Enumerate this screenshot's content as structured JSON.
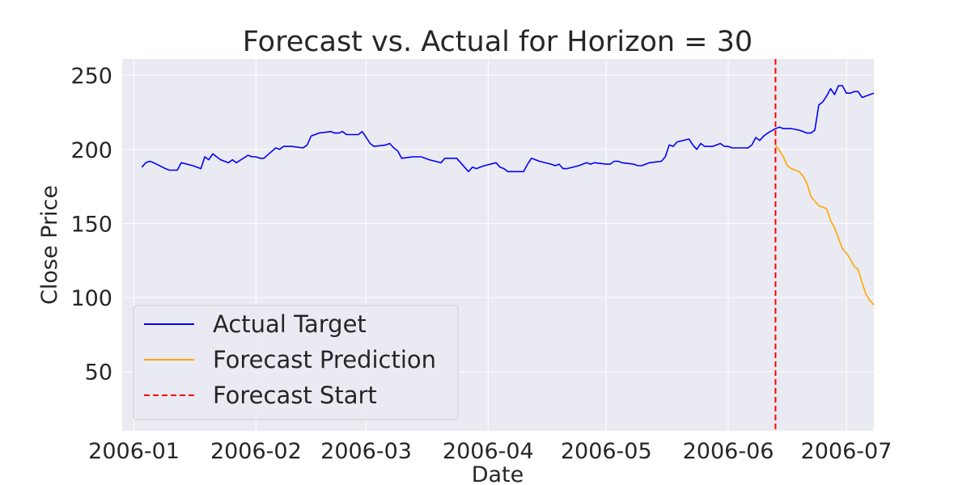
{
  "chart_data": {
    "type": "line",
    "title": "Forecast vs. Actual for Horizon = 30",
    "xlabel": "Date",
    "ylabel": "Close Price",
    "x_range": [
      "2005-12-29",
      "2006-07-08"
    ],
    "ylim": [
      10,
      261
    ],
    "x_ticks": [
      "2006-01-01",
      "2006-02-01",
      "2006-03-01",
      "2006-04-01",
      "2006-05-01",
      "2006-06-01",
      "2006-07-01"
    ],
    "x_tick_labels": [
      "2006-01",
      "2006-02",
      "2006-03",
      "2006-04",
      "2006-05",
      "2006-06",
      "2006-07"
    ],
    "y_ticks": [
      50,
      100,
      150,
      200,
      250
    ],
    "y_tick_labels": [
      "50",
      "100",
      "150",
      "200",
      "250"
    ],
    "grid": true,
    "legend_position": "lower-left",
    "background": "#eaeaf2",
    "series": [
      {
        "name": "Actual Target",
        "color": "#0000ff",
        "style": "solid",
        "points": [
          [
            "2006-01-03",
            188
          ],
          [
            "2006-01-04",
            191
          ],
          [
            "2006-01-05",
            192
          ],
          [
            "2006-01-06",
            191
          ],
          [
            "2006-01-09",
            187
          ],
          [
            "2006-01-10",
            186
          ],
          [
            "2006-01-11",
            186
          ],
          [
            "2006-01-12",
            186
          ],
          [
            "2006-01-13",
            191
          ],
          [
            "2006-01-16",
            189
          ],
          [
            "2006-01-17",
            188
          ],
          [
            "2006-01-18",
            187
          ],
          [
            "2006-01-19",
            195
          ],
          [
            "2006-01-20",
            193
          ],
          [
            "2006-01-21",
            197
          ],
          [
            "2006-01-23",
            193
          ],
          [
            "2006-01-24",
            192
          ],
          [
            "2006-01-25",
            191
          ],
          [
            "2006-01-26",
            193
          ],
          [
            "2006-01-27",
            191
          ],
          [
            "2006-01-30",
            196
          ],
          [
            "2006-01-31",
            195
          ],
          [
            "2006-02-01",
            195
          ],
          [
            "2006-02-02",
            194
          ],
          [
            "2006-02-03",
            194
          ],
          [
            "2006-02-06",
            201
          ],
          [
            "2006-02-07",
            200
          ],
          [
            "2006-02-08",
            202
          ],
          [
            "2006-02-09",
            202
          ],
          [
            "2006-02-10",
            202
          ],
          [
            "2006-02-13",
            201
          ],
          [
            "2006-02-14",
            203
          ],
          [
            "2006-02-15",
            209
          ],
          [
            "2006-02-16",
            210
          ],
          [
            "2006-02-17",
            211
          ],
          [
            "2006-02-20",
            212
          ],
          [
            "2006-02-21",
            211
          ],
          [
            "2006-02-22",
            211
          ],
          [
            "2006-02-23",
            212
          ],
          [
            "2006-02-24",
            210
          ],
          [
            "2006-02-27",
            210
          ],
          [
            "2006-02-28",
            212
          ],
          [
            "2006-03-01",
            208
          ],
          [
            "2006-03-02",
            204
          ],
          [
            "2006-03-03",
            202
          ],
          [
            "2006-03-06",
            203
          ],
          [
            "2006-03-07",
            204
          ],
          [
            "2006-03-08",
            201
          ],
          [
            "2006-03-09",
            199
          ],
          [
            "2006-03-10",
            194
          ],
          [
            "2006-03-13",
            195
          ],
          [
            "2006-03-14",
            195
          ],
          [
            "2006-03-15",
            195
          ],
          [
            "2006-03-16",
            194
          ],
          [
            "2006-03-17",
            193
          ],
          [
            "2006-03-20",
            191
          ],
          [
            "2006-03-21",
            194
          ],
          [
            "2006-03-22",
            194
          ],
          [
            "2006-03-23",
            194
          ],
          [
            "2006-03-24",
            194
          ],
          [
            "2006-03-27",
            185
          ],
          [
            "2006-03-28",
            188
          ],
          [
            "2006-03-29",
            187
          ],
          [
            "2006-03-30",
            188
          ],
          [
            "2006-03-31",
            189
          ],
          [
            "2006-04-03",
            191
          ],
          [
            "2006-04-04",
            188
          ],
          [
            "2006-04-05",
            187
          ],
          [
            "2006-04-06",
            185
          ],
          [
            "2006-04-07",
            185
          ],
          [
            "2006-04-10",
            185
          ],
          [
            "2006-04-11",
            190
          ],
          [
            "2006-04-12",
            194
          ],
          [
            "2006-04-13",
            193
          ],
          [
            "2006-04-14",
            192
          ],
          [
            "2006-04-17",
            190
          ],
          [
            "2006-04-18",
            189
          ],
          [
            "2006-04-19",
            190
          ],
          [
            "2006-04-20",
            187
          ],
          [
            "2006-04-21",
            187
          ],
          [
            "2006-04-24",
            189
          ],
          [
            "2006-04-25",
            190
          ],
          [
            "2006-04-26",
            191
          ],
          [
            "2006-04-27",
            190
          ],
          [
            "2006-04-28",
            191
          ],
          [
            "2006-05-01",
            190
          ],
          [
            "2006-05-02",
            190
          ],
          [
            "2006-05-03",
            192
          ],
          [
            "2006-05-04",
            192
          ],
          [
            "2006-05-05",
            191
          ],
          [
            "2006-05-08",
            190
          ],
          [
            "2006-05-09",
            189
          ],
          [
            "2006-05-10",
            189
          ],
          [
            "2006-05-11",
            190
          ],
          [
            "2006-05-12",
            191
          ],
          [
            "2006-05-15",
            192
          ],
          [
            "2006-05-16",
            195
          ],
          [
            "2006-05-17",
            203
          ],
          [
            "2006-05-18",
            202
          ],
          [
            "2006-05-19",
            205
          ],
          [
            "2006-05-22",
            207
          ],
          [
            "2006-05-23",
            203
          ],
          [
            "2006-05-24",
            200
          ],
          [
            "2006-05-25",
            204
          ],
          [
            "2006-05-26",
            202
          ],
          [
            "2006-05-27",
            202
          ],
          [
            "2006-05-28",
            202
          ],
          [
            "2006-05-30",
            204
          ],
          [
            "2006-05-31",
            202
          ],
          [
            "2006-06-01",
            202
          ],
          [
            "2006-06-02",
            201
          ],
          [
            "2006-06-05",
            201
          ],
          [
            "2006-06-06",
            201
          ],
          [
            "2006-06-07",
            203
          ],
          [
            "2006-06-08",
            208
          ],
          [
            "2006-06-09",
            206
          ],
          [
            "2006-06-10",
            209
          ],
          [
            "2006-06-11",
            211
          ],
          [
            "2006-06-13",
            214
          ],
          [
            "2006-06-14",
            215
          ],
          [
            "2006-06-15",
            214
          ],
          [
            "2006-06-16",
            214
          ],
          [
            "2006-06-17",
            214
          ],
          [
            "2006-06-19",
            213
          ],
          [
            "2006-06-20",
            212
          ],
          [
            "2006-06-21",
            211
          ],
          [
            "2006-06-22",
            211
          ],
          [
            "2006-06-23",
            213
          ],
          [
            "2006-06-24",
            230
          ],
          [
            "2006-06-25",
            232
          ],
          [
            "2006-06-26",
            236
          ],
          [
            "2006-06-27",
            241
          ],
          [
            "2006-06-28",
            237
          ],
          [
            "2006-06-29",
            243
          ],
          [
            "2006-06-30",
            243
          ],
          [
            "2006-07-01",
            238
          ],
          [
            "2006-07-02",
            238
          ],
          [
            "2006-07-03",
            239
          ],
          [
            "2006-07-04",
            239
          ],
          [
            "2006-07-05",
            235
          ],
          [
            "2006-07-06",
            236
          ],
          [
            "2006-07-07",
            237
          ],
          [
            "2006-07-08",
            238
          ]
        ]
      },
      {
        "name": "Forecast Prediction",
        "color": "#ffa500",
        "style": "solid",
        "points": [
          [
            "2006-06-13",
            203
          ],
          [
            "2006-06-14",
            199
          ],
          [
            "2006-06-15",
            195
          ],
          [
            "2006-06-16",
            189
          ],
          [
            "2006-06-17",
            187
          ],
          [
            "2006-06-19",
            185
          ],
          [
            "2006-06-20",
            182
          ],
          [
            "2006-06-21",
            177
          ],
          [
            "2006-06-22",
            168
          ],
          [
            "2006-06-23",
            165
          ],
          [
            "2006-06-24",
            162
          ],
          [
            "2006-06-26",
            160
          ],
          [
            "2006-06-27",
            152
          ],
          [
            "2006-06-28",
            147
          ],
          [
            "2006-06-29",
            140
          ],
          [
            "2006-06-30",
            133
          ],
          [
            "2006-07-01",
            130
          ],
          [
            "2006-07-02",
            126
          ],
          [
            "2006-07-03",
            121
          ],
          [
            "2006-07-04",
            119
          ],
          [
            "2006-07-05",
            110
          ],
          [
            "2006-07-06",
            102
          ],
          [
            "2006-07-07",
            98
          ],
          [
            "2006-07-08",
            95
          ]
        ]
      }
    ],
    "forecast_start": {
      "name": "Forecast Start",
      "date": "2006-06-13",
      "color": "#ff0000",
      "style": "dashed"
    }
  }
}
